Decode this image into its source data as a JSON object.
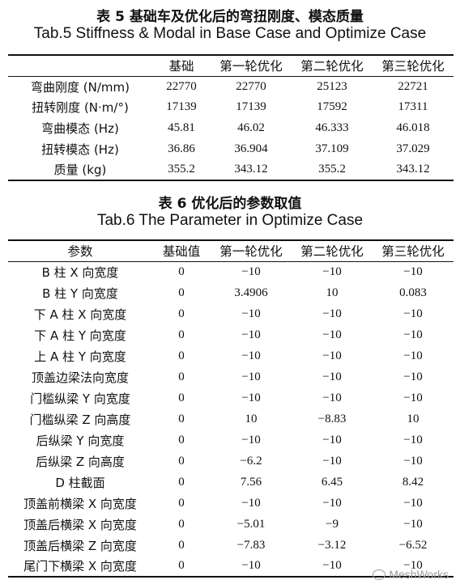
{
  "table5": {
    "title_cn": "表 5  基础车及优化后的弯扭刚度、模态质量",
    "title_en": "Tab.5 Stiffness & Modal in Base Case and Optimize Case",
    "headers": [
      "",
      "基础",
      "第一轮优化",
      "第二轮优化",
      "第三轮优化"
    ],
    "rows": [
      {
        "label": "弯曲刚度 (N/mm)",
        "values": [
          "22770",
          "22770",
          "25123",
          "22721"
        ]
      },
      {
        "label": "扭转刚度 (N·m/°)",
        "values": [
          "17139",
          "17139",
          "17592",
          "17311"
        ]
      },
      {
        "label": "弯曲模态 (Hz)",
        "values": [
          "45.81",
          "46.02",
          "46.333",
          "46.018"
        ]
      },
      {
        "label": "扭转模态 (Hz)",
        "values": [
          "36.86",
          "36.904",
          "37.109",
          "37.029"
        ]
      },
      {
        "label": "质量 (kg)",
        "values": [
          "355.2",
          "343.12",
          "355.2",
          "343.12"
        ]
      }
    ]
  },
  "table6": {
    "title_cn": "表 6  优化后的参数取值",
    "title_en": "Tab.6 The Parameter in Optimize Case",
    "headers": [
      "参数",
      "基础值",
      "第一轮优化",
      "第二轮优化",
      "第三轮优化"
    ],
    "rows": [
      {
        "label": "B 柱 X 向宽度",
        "values": [
          "0",
          "−10",
          "−10",
          "−10"
        ]
      },
      {
        "label": "B 柱 Y 向宽度",
        "values": [
          "0",
          "3.4906",
          "10",
          "0.083"
        ]
      },
      {
        "label": "下 A 柱 X 向宽度",
        "values": [
          "0",
          "−10",
          "−10",
          "−10"
        ]
      },
      {
        "label": "下 A 柱 Y 向宽度",
        "values": [
          "0",
          "−10",
          "−10",
          "−10"
        ]
      },
      {
        "label": "上 A 柱 Y 向宽度",
        "values": [
          "0",
          "−10",
          "−10",
          "−10"
        ]
      },
      {
        "label": "顶盖边梁法向宽度",
        "values": [
          "0",
          "−10",
          "−10",
          "−10"
        ]
      },
      {
        "label": "门槛纵梁 Y 向宽度",
        "values": [
          "0",
          "−10",
          "−10",
          "−10"
        ]
      },
      {
        "label": "门槛纵梁 Z 向高度",
        "values": [
          "0",
          "10",
          "−8.83",
          "10"
        ]
      },
      {
        "label": "后纵梁 Y 向宽度",
        "values": [
          "0",
          "−10",
          "−10",
          "−10"
        ]
      },
      {
        "label": "后纵梁 Z 向高度",
        "values": [
          "0",
          "−6.2",
          "−10",
          "−10"
        ]
      },
      {
        "label": "D 柱截面",
        "values": [
          "0",
          "7.56",
          "6.45",
          "8.42"
        ]
      },
      {
        "label": "顶盖前横梁 X 向宽度",
        "values": [
          "0",
          "−10",
          "−10",
          "−10"
        ]
      },
      {
        "label": "顶盖后横梁 X 向宽度",
        "values": [
          "0",
          "−5.01",
          "−9",
          "−10"
        ]
      },
      {
        "label": "顶盖后横梁 Z 向宽度",
        "values": [
          "0",
          "−7.83",
          "−3.12",
          "−6.52"
        ]
      },
      {
        "label": "尾门下横梁 X 向宽度",
        "values": [
          "0",
          "−10",
          "−10",
          "−10"
        ]
      }
    ]
  },
  "watermark": {
    "text": "MeshWorks",
    "icon": "wechat-icon"
  }
}
